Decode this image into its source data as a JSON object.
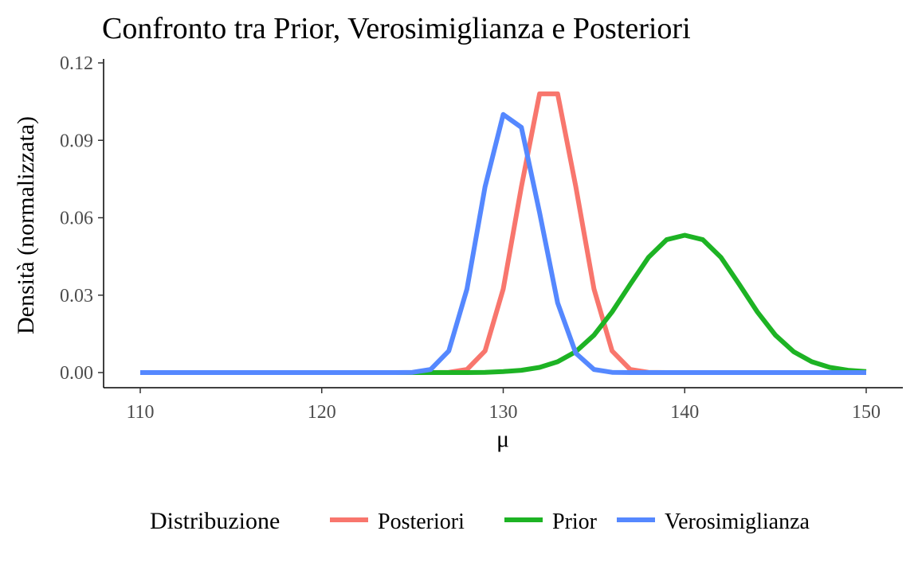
{
  "chart_data": {
    "type": "line",
    "title": "Confronto tra Prior, Verosimiglianza e Posteriori",
    "xlabel": "μ",
    "ylabel": "Densità (normalizzata)",
    "xlim": [
      110,
      150
    ],
    "ylim": [
      0,
      0.12
    ],
    "x_ticks": [
      110,
      120,
      130,
      140,
      150
    ],
    "x_tick_labels": [
      "110",
      "120",
      "130",
      "140",
      "150"
    ],
    "y_ticks": [
      0,
      0.03,
      0.06,
      0.09,
      0.12
    ],
    "y_tick_labels": [
      "0.00",
      "0.03",
      "0.06",
      "0.09",
      "0.12"
    ],
    "grid": false,
    "legend": {
      "title": "Distribuzione",
      "position": "bottom"
    },
    "x": [
      110,
      111,
      112,
      113,
      114,
      115,
      116,
      117,
      118,
      119,
      120,
      121,
      122,
      123,
      124,
      125,
      126,
      127,
      128,
      129,
      130,
      131,
      132,
      133,
      134,
      135,
      136,
      137,
      138,
      139,
      140,
      141,
      142,
      143,
      144,
      145,
      146,
      147,
      148,
      149,
      150
    ],
    "series": [
      {
        "name": "Posteriori",
        "color": "#F8766D",
        "values": [
          0,
          0,
          0,
          0,
          0,
          0,
          0,
          0,
          0,
          0,
          0,
          0,
          0,
          0,
          0,
          0,
          0,
          0.0001,
          0.0012,
          0.0084,
          0.0324,
          0.072,
          0.108,
          0.108,
          0.072,
          0.0324,
          0.0084,
          0.0012,
          0.0001,
          0,
          0,
          0,
          0,
          0,
          0,
          0,
          0,
          0,
          0,
          0,
          0
        ]
      },
      {
        "name": "Prior",
        "color": "#1DB324",
        "values": [
          0,
          0,
          0,
          0,
          0,
          0,
          0,
          0,
          0,
          0,
          0,
          0,
          0,
          0,
          0,
          0,
          0,
          0,
          0,
          0.0001,
          0.0004,
          0.0009,
          0.002,
          0.0042,
          0.0081,
          0.0145,
          0.0235,
          0.0342,
          0.0446,
          0.0515,
          0.0532,
          0.0515,
          0.0446,
          0.0342,
          0.0235,
          0.0145,
          0.0081,
          0.0042,
          0.002,
          0.0009,
          0.0004
        ]
      },
      {
        "name": "Verosimiglianza",
        "color": "#5588FF",
        "values": [
          0,
          0,
          0,
          0,
          0,
          0,
          0,
          0,
          0,
          0,
          0,
          0,
          0,
          0,
          0,
          0.0001,
          0.0012,
          0.0084,
          0.0324,
          0.072,
          0.1,
          0.095,
          0.062,
          0.027,
          0.0075,
          0.0012,
          0.0001,
          0,
          0,
          0,
          0,
          0,
          0,
          0,
          0,
          0,
          0,
          0,
          0,
          0,
          0
        ]
      }
    ]
  }
}
